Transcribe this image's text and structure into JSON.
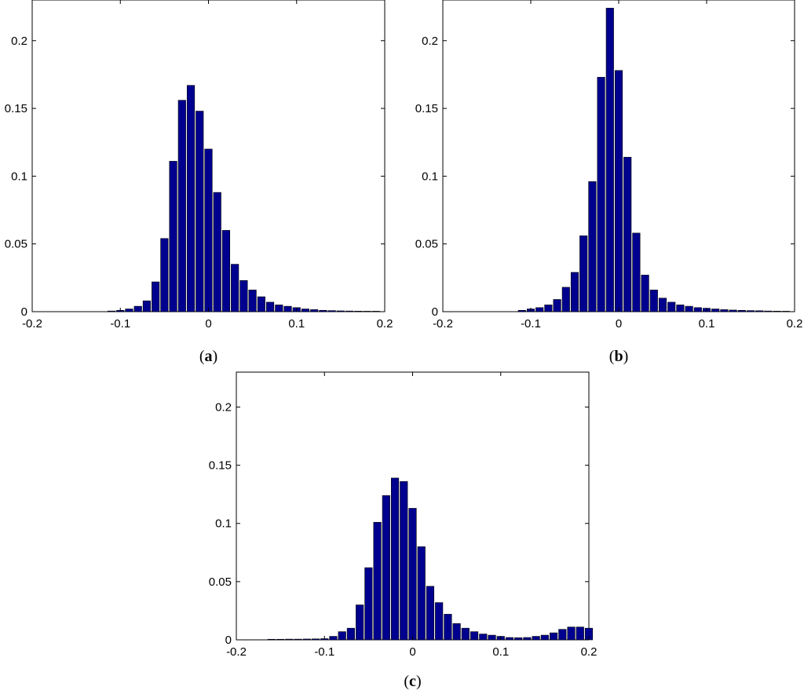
{
  "chart_data": [
    {
      "type": "bar",
      "panel": "a",
      "caption": {
        "open": "(",
        "letter": "a",
        "close": ")"
      },
      "xlim": [
        -0.2,
        0.2
      ],
      "ylim": [
        0,
        0.23
      ],
      "xticks": [
        -0.2,
        -0.1,
        0,
        0.1,
        0.2
      ],
      "xtick_labels": [
        "-0.2",
        "-0.1",
        "0",
        "0.1",
        "0.2"
      ],
      "yticks": [
        0,
        0.05,
        0.1,
        0.15,
        0.2
      ],
      "ytick_labels": [
        "0",
        "0.05",
        "0.1",
        "0.15",
        "0.2"
      ],
      "bar_color": "#00008f",
      "x": [
        -0.11,
        -0.1,
        -0.09,
        -0.08,
        -0.07,
        -0.06,
        -0.05,
        -0.04,
        -0.03,
        -0.02,
        -0.01,
        0,
        0.01,
        0.02,
        0.03,
        0.04,
        0.05,
        0.06,
        0.07,
        0.08,
        0.09,
        0.1,
        0.11,
        0.12,
        0.13,
        0.14,
        0.15,
        0.16,
        0.17,
        0.18,
        0.19
      ],
      "values": [
        0.0005,
        0.001,
        0.002,
        0.004,
        0.008,
        0.022,
        0.054,
        0.111,
        0.156,
        0.167,
        0.148,
        0.12,
        0.088,
        0.06,
        0.035,
        0.023,
        0.016,
        0.011,
        0.007,
        0.005,
        0.004,
        0.003,
        0.002,
        0.0015,
        0.001,
        0.0008,
        0.0006,
        0.0005,
        0.0004,
        0.0003,
        0.0003
      ]
    },
    {
      "type": "bar",
      "panel": "b",
      "caption": {
        "open": "(",
        "letter": "b",
        "close": ")"
      },
      "xlim": [
        -0.2,
        0.2
      ],
      "ylim": [
        0,
        0.23
      ],
      "xticks": [
        -0.2,
        -0.1,
        0,
        0.1,
        0.2
      ],
      "xtick_labels": [
        "-0.2",
        "-0.1",
        "0",
        "0.1",
        "0.2"
      ],
      "yticks": [
        0,
        0.05,
        0.1,
        0.15,
        0.2
      ],
      "ytick_labels": [
        "0",
        "0.05",
        "0.1",
        "0.15",
        "0.2"
      ],
      "bar_color": "#00008f",
      "x": [
        -0.11,
        -0.1,
        -0.09,
        -0.08,
        -0.07,
        -0.06,
        -0.05,
        -0.04,
        -0.03,
        -0.02,
        -0.01,
        0,
        0.01,
        0.02,
        0.03,
        0.04,
        0.05,
        0.06,
        0.07,
        0.08,
        0.09,
        0.1,
        0.11,
        0.12,
        0.13,
        0.14,
        0.15,
        0.16,
        0.17,
        0.18,
        0.19
      ],
      "values": [
        0.001,
        0.002,
        0.003,
        0.005,
        0.009,
        0.018,
        0.029,
        0.056,
        0.096,
        0.173,
        0.224,
        0.178,
        0.114,
        0.058,
        0.027,
        0.016,
        0.01,
        0.007,
        0.005,
        0.004,
        0.003,
        0.0025,
        0.002,
        0.0015,
        0.0012,
        0.001,
        0.0008,
        0.0007,
        0.0005,
        0.0004,
        0.0003
      ]
    },
    {
      "type": "bar",
      "panel": "c",
      "caption": {
        "open": "(",
        "letter": "c",
        "close": ")"
      },
      "xlim": [
        -0.2,
        0.2
      ],
      "ylim": [
        0,
        0.23
      ],
      "xticks": [
        -0.2,
        -0.1,
        0,
        0.1,
        0.2
      ],
      "xtick_labels": [
        "-0.2",
        "-0.1",
        "0",
        "0.1",
        "0.2"
      ],
      "yticks": [
        0,
        0.05,
        0.1,
        0.15,
        0.2
      ],
      "ytick_labels": [
        "0",
        "0.05",
        "0.1",
        "0.15",
        "0.2"
      ],
      "bar_color": "#00008f",
      "x": [
        -0.16,
        -0.15,
        -0.14,
        -0.13,
        -0.12,
        -0.11,
        -0.1,
        -0.09,
        -0.08,
        -0.07,
        -0.06,
        -0.05,
        -0.04,
        -0.03,
        -0.02,
        -0.01,
        0,
        0.01,
        0.02,
        0.03,
        0.04,
        0.05,
        0.06,
        0.07,
        0.08,
        0.09,
        0.1,
        0.11,
        0.12,
        0.13,
        0.14,
        0.15,
        0.16,
        0.17,
        0.18,
        0.19,
        0.2
      ],
      "values": [
        0.0005,
        0.0005,
        0.0006,
        0.0006,
        0.0007,
        0.0008,
        0.001,
        0.003,
        0.007,
        0.01,
        0.03,
        0.062,
        0.101,
        0.124,
        0.139,
        0.136,
        0.113,
        0.08,
        0.046,
        0.032,
        0.022,
        0.014,
        0.01,
        0.007,
        0.005,
        0.004,
        0.003,
        0.002,
        0.0018,
        0.002,
        0.003,
        0.004,
        0.006,
        0.009,
        0.011,
        0.011,
        0.01
      ]
    }
  ]
}
